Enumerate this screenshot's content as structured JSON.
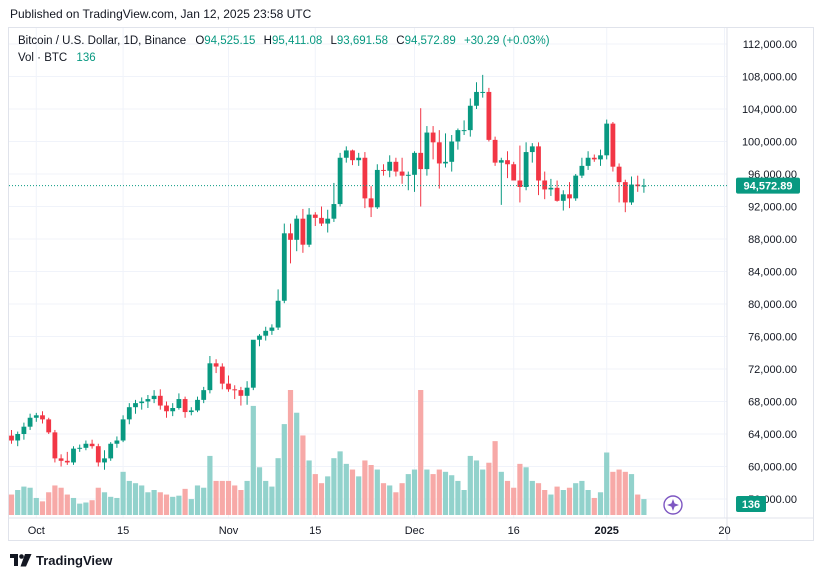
{
  "published": "Published on TradingView.com, Jan 12, 2025 23:58 UTC",
  "legend": {
    "symbol": "Bitcoin / U.S. Dollar, 1D, Binance",
    "o_label": "O",
    "o_value": "94,525.15",
    "h_label": "H",
    "h_value": "95,411.08",
    "l_label": "L",
    "l_value": "93,691.58",
    "c_label": "C",
    "c_value": "94,572.89",
    "change": "+30.29 (+0.03%)",
    "vol_label": "Vol · BTC",
    "vol_value": "136"
  },
  "footer": {
    "brand": "TradingView",
    "logo_icon": "tradingview-logo-icon"
  },
  "colors": {
    "up": "#089981",
    "down": "#f23645",
    "up_vol": "#92d2cc",
    "down_vol": "#f7a9a7",
    "grid": "#f0f3fa",
    "text": "#131722"
  },
  "chart_data": {
    "type": "candlestick",
    "y_ticks": [
      "112,000.00",
      "108,000.00",
      "104,000.00",
      "100,000.00",
      "96,000.00",
      "92,000.00",
      "88,000.00",
      "84,000.00",
      "80,000.00",
      "76,000.00",
      "72,000.00",
      "68,000.00",
      "64,000.00",
      "60,000.00",
      "56,000.00"
    ],
    "ylim": [
      55000,
      114500
    ],
    "x_ticks": [
      {
        "label": "Oct",
        "day": 4
      },
      {
        "label": "15",
        "day": 18
      },
      {
        "label": "Nov",
        "day": 35
      },
      {
        "label": "15",
        "day": 49
      },
      {
        "label": "Dec",
        "day": 65
      },
      {
        "label": "16",
        "day": 81
      },
      {
        "label": "2025",
        "day": 96
      },
      {
        "label": "20",
        "day": 115
      }
    ],
    "last_price": 94572.89,
    "last_price_label": "94,572.89",
    "volume_label": "136",
    "candles": [
      {
        "o": 63800,
        "h": 64500,
        "l": 62800,
        "c": 63200,
        "v": 18
      },
      {
        "o": 63200,
        "h": 64300,
        "l": 62500,
        "c": 64000,
        "v": 22
      },
      {
        "o": 64000,
        "h": 65400,
        "l": 63300,
        "c": 64900,
        "v": 25
      },
      {
        "o": 64900,
        "h": 66500,
        "l": 64500,
        "c": 66000,
        "v": 24
      },
      {
        "o": 66000,
        "h": 66600,
        "l": 65500,
        "c": 66300,
        "v": 15
      },
      {
        "o": 66300,
        "h": 66800,
        "l": 65300,
        "c": 65800,
        "v": 12
      },
      {
        "o": 65800,
        "h": 66000,
        "l": 64000,
        "c": 64200,
        "v": 20
      },
      {
        "o": 64200,
        "h": 64500,
        "l": 60500,
        "c": 61000,
        "v": 26
      },
      {
        "o": 61000,
        "h": 61500,
        "l": 60000,
        "c": 60700,
        "v": 24
      },
      {
        "o": 60700,
        "h": 61800,
        "l": 60200,
        "c": 60500,
        "v": 18
      },
      {
        "o": 60500,
        "h": 62500,
        "l": 60200,
        "c": 62200,
        "v": 15
      },
      {
        "o": 62200,
        "h": 62700,
        "l": 61800,
        "c": 62300,
        "v": 10
      },
      {
        "o": 62300,
        "h": 63200,
        "l": 62000,
        "c": 62800,
        "v": 11
      },
      {
        "o": 62800,
        "h": 63300,
        "l": 62200,
        "c": 62500,
        "v": 13
      },
      {
        "o": 62500,
        "h": 62800,
        "l": 60000,
        "c": 60500,
        "v": 24
      },
      {
        "o": 60500,
        "h": 62000,
        "l": 59600,
        "c": 61000,
        "v": 20
      },
      {
        "o": 61000,
        "h": 63000,
        "l": 60700,
        "c": 62800,
        "v": 16
      },
      {
        "o": 62800,
        "h": 63700,
        "l": 62300,
        "c": 63200,
        "v": 15
      },
      {
        "o": 63200,
        "h": 66300,
        "l": 63000,
        "c": 65800,
        "v": 38
      },
      {
        "o": 65800,
        "h": 67800,
        "l": 65200,
        "c": 67300,
        "v": 30
      },
      {
        "o": 67300,
        "h": 68200,
        "l": 66500,
        "c": 67800,
        "v": 28
      },
      {
        "o": 67800,
        "h": 68500,
        "l": 67000,
        "c": 68000,
        "v": 26
      },
      {
        "o": 68000,
        "h": 68800,
        "l": 67200,
        "c": 68300,
        "v": 20
      },
      {
        "o": 68300,
        "h": 69400,
        "l": 67800,
        "c": 68700,
        "v": 22
      },
      {
        "o": 68700,
        "h": 69500,
        "l": 67000,
        "c": 67500,
        "v": 20
      },
      {
        "o": 67500,
        "h": 68000,
        "l": 66000,
        "c": 66800,
        "v": 18
      },
      {
        "o": 66800,
        "h": 67800,
        "l": 66200,
        "c": 67200,
        "v": 16
      },
      {
        "o": 67200,
        "h": 69000,
        "l": 67000,
        "c": 68300,
        "v": 17
      },
      {
        "o": 68300,
        "h": 68600,
        "l": 66000,
        "c": 66700,
        "v": 23
      },
      {
        "o": 66700,
        "h": 67300,
        "l": 66300,
        "c": 66900,
        "v": 14
      },
      {
        "o": 66900,
        "h": 68600,
        "l": 66700,
        "c": 68200,
        "v": 26
      },
      {
        "o": 68200,
        "h": 69800,
        "l": 67800,
        "c": 69400,
        "v": 24
      },
      {
        "o": 69400,
        "h": 73600,
        "l": 69000,
        "c": 72700,
        "v": 52
      },
      {
        "o": 72700,
        "h": 73200,
        "l": 71500,
        "c": 72300,
        "v": 30
      },
      {
        "o": 72300,
        "h": 72700,
        "l": 69500,
        "c": 70200,
        "v": 30
      },
      {
        "o": 70200,
        "h": 71200,
        "l": 69200,
        "c": 69500,
        "v": 30
      },
      {
        "o": 69500,
        "h": 70000,
        "l": 68300,
        "c": 69400,
        "v": 26
      },
      {
        "o": 69400,
        "h": 69800,
        "l": 67500,
        "c": 68700,
        "v": 22
      },
      {
        "o": 68700,
        "h": 70500,
        "l": 67600,
        "c": 69700,
        "v": 30
      },
      {
        "o": 69700,
        "h": 75500,
        "l": 69400,
        "c": 75600,
        "v": 96
      },
      {
        "o": 75600,
        "h": 76300,
        "l": 74800,
        "c": 76100,
        "v": 42
      },
      {
        "o": 76100,
        "h": 77200,
        "l": 75500,
        "c": 76700,
        "v": 30
      },
      {
        "o": 76700,
        "h": 77500,
        "l": 76200,
        "c": 77100,
        "v": 25
      },
      {
        "o": 77100,
        "h": 81800,
        "l": 76800,
        "c": 80400,
        "v": 50
      },
      {
        "o": 80400,
        "h": 89900,
        "l": 80100,
        "c": 88700,
        "v": 80
      },
      {
        "o": 88700,
        "h": 89900,
        "l": 85000,
        "c": 87900,
        "v": 110
      },
      {
        "o": 87900,
        "h": 90900,
        "l": 86500,
        "c": 90500,
        "v": 90
      },
      {
        "o": 90500,
        "h": 91700,
        "l": 86300,
        "c": 87300,
        "v": 70
      },
      {
        "o": 87300,
        "h": 91800,
        "l": 87000,
        "c": 91000,
        "v": 48
      },
      {
        "o": 91000,
        "h": 91300,
        "l": 89600,
        "c": 90600,
        "v": 36
      },
      {
        "o": 90600,
        "h": 92000,
        "l": 89600,
        "c": 89900,
        "v": 28
      },
      {
        "o": 89900,
        "h": 91600,
        "l": 88800,
        "c": 90500,
        "v": 34
      },
      {
        "o": 90500,
        "h": 94900,
        "l": 90100,
        "c": 92300,
        "v": 50
      },
      {
        "o": 92300,
        "h": 98600,
        "l": 92000,
        "c": 98000,
        "v": 56
      },
      {
        "o": 98000,
        "h": 99400,
        "l": 97400,
        "c": 98900,
        "v": 45
      },
      {
        "o": 98900,
        "h": 99000,
        "l": 97100,
        "c": 97700,
        "v": 40
      },
      {
        "o": 97700,
        "h": 98600,
        "l": 97000,
        "c": 98000,
        "v": 34
      },
      {
        "o": 98000,
        "h": 98700,
        "l": 91800,
        "c": 93000,
        "v": 48
      },
      {
        "o": 93000,
        "h": 94500,
        "l": 90700,
        "c": 91900,
        "v": 44
      },
      {
        "o": 91900,
        "h": 97200,
        "l": 91700,
        "c": 96500,
        "v": 40
      },
      {
        "o": 96500,
        "h": 97200,
        "l": 95800,
        "c": 96400,
        "v": 28
      },
      {
        "o": 96400,
        "h": 98300,
        "l": 95600,
        "c": 97500,
        "v": 26
      },
      {
        "o": 97500,
        "h": 98000,
        "l": 95700,
        "c": 96300,
        "v": 20
      },
      {
        "o": 96300,
        "h": 98000,
        "l": 94800,
        "c": 95800,
        "v": 28
      },
      {
        "o": 95800,
        "h": 96300,
        "l": 94000,
        "c": 95900,
        "v": 36
      },
      {
        "o": 95900,
        "h": 98800,
        "l": 93800,
        "c": 98600,
        "v": 40
      },
      {
        "o": 98600,
        "h": 104100,
        "l": 92000,
        "c": 96600,
        "v": 110
      },
      {
        "o": 96600,
        "h": 101900,
        "l": 95800,
        "c": 101100,
        "v": 40
      },
      {
        "o": 101100,
        "h": 101900,
        "l": 97800,
        "c": 99900,
        "v": 36
      },
      {
        "o": 99900,
        "h": 101400,
        "l": 94200,
        "c": 97300,
        "v": 40
      },
      {
        "o": 97300,
        "h": 101000,
        "l": 96800,
        "c": 97500,
        "v": 38
      },
      {
        "o": 97500,
        "h": 100800,
        "l": 96300,
        "c": 100000,
        "v": 35
      },
      {
        "o": 100000,
        "h": 101600,
        "l": 99000,
        "c": 101400,
        "v": 30
      },
      {
        "o": 101400,
        "h": 102600,
        "l": 100800,
        "c": 101400,
        "v": 22
      },
      {
        "o": 101400,
        "h": 105300,
        "l": 100600,
        "c": 104400,
        "v": 52
      },
      {
        "o": 104400,
        "h": 107300,
        "l": 104000,
        "c": 106100,
        "v": 48
      },
      {
        "o": 106100,
        "h": 108200,
        "l": 105400,
        "c": 106100,
        "v": 40
      },
      {
        "o": 106100,
        "h": 106600,
        "l": 100000,
        "c": 100200,
        "v": 46
      },
      {
        "o": 100200,
        "h": 100600,
        "l": 97000,
        "c": 97400,
        "v": 65
      },
      {
        "o": 97400,
        "h": 98000,
        "l": 92200,
        "c": 97700,
        "v": 38
      },
      {
        "o": 97700,
        "h": 98800,
        "l": 95500,
        "c": 97200,
        "v": 30
      },
      {
        "o": 97200,
        "h": 97500,
        "l": 95200,
        "c": 95200,
        "v": 24
      },
      {
        "o": 95200,
        "h": 99500,
        "l": 92500,
        "c": 94400,
        "v": 45
      },
      {
        "o": 94400,
        "h": 99900,
        "l": 94000,
        "c": 98700,
        "v": 42
      },
      {
        "o": 98700,
        "h": 99800,
        "l": 97400,
        "c": 99400,
        "v": 30
      },
      {
        "o": 99400,
        "h": 99900,
        "l": 93400,
        "c": 95200,
        "v": 28
      },
      {
        "o": 95200,
        "h": 96300,
        "l": 92900,
        "c": 94100,
        "v": 22
      },
      {
        "o": 94100,
        "h": 95400,
        "l": 93300,
        "c": 94300,
        "v": 18
      },
      {
        "o": 94300,
        "h": 95200,
        "l": 92600,
        "c": 92700,
        "v": 25
      },
      {
        "o": 92700,
        "h": 94000,
        "l": 91500,
        "c": 93500,
        "v": 22
      },
      {
        "o": 93500,
        "h": 95000,
        "l": 91800,
        "c": 93000,
        "v": 24
      },
      {
        "o": 93000,
        "h": 96000,
        "l": 92700,
        "c": 95800,
        "v": 28
      },
      {
        "o": 95800,
        "h": 98000,
        "l": 95500,
        "c": 97000,
        "v": 30
      },
      {
        "o": 97000,
        "h": 98800,
        "l": 96500,
        "c": 98000,
        "v": 22
      },
      {
        "o": 98000,
        "h": 98400,
        "l": 97500,
        "c": 97800,
        "v": 15
      },
      {
        "o": 97800,
        "h": 99000,
        "l": 97000,
        "c": 98300,
        "v": 20
      },
      {
        "o": 98300,
        "h": 102700,
        "l": 97800,
        "c": 102200,
        "v": 55
      },
      {
        "o": 102200,
        "h": 102400,
        "l": 96300,
        "c": 96900,
        "v": 38
      },
      {
        "o": 96900,
        "h": 97300,
        "l": 92500,
        "c": 95000,
        "v": 40
      },
      {
        "o": 95000,
        "h": 95300,
        "l": 91300,
        "c": 92500,
        "v": 38
      },
      {
        "o": 92500,
        "h": 95700,
        "l": 92200,
        "c": 94700,
        "v": 36
      },
      {
        "o": 94700,
        "h": 95800,
        "l": 93800,
        "c": 94500,
        "v": 18
      },
      {
        "o": 94525,
        "h": 95411,
        "l": 93691,
        "c": 94572,
        "v": 14
      }
    ]
  }
}
